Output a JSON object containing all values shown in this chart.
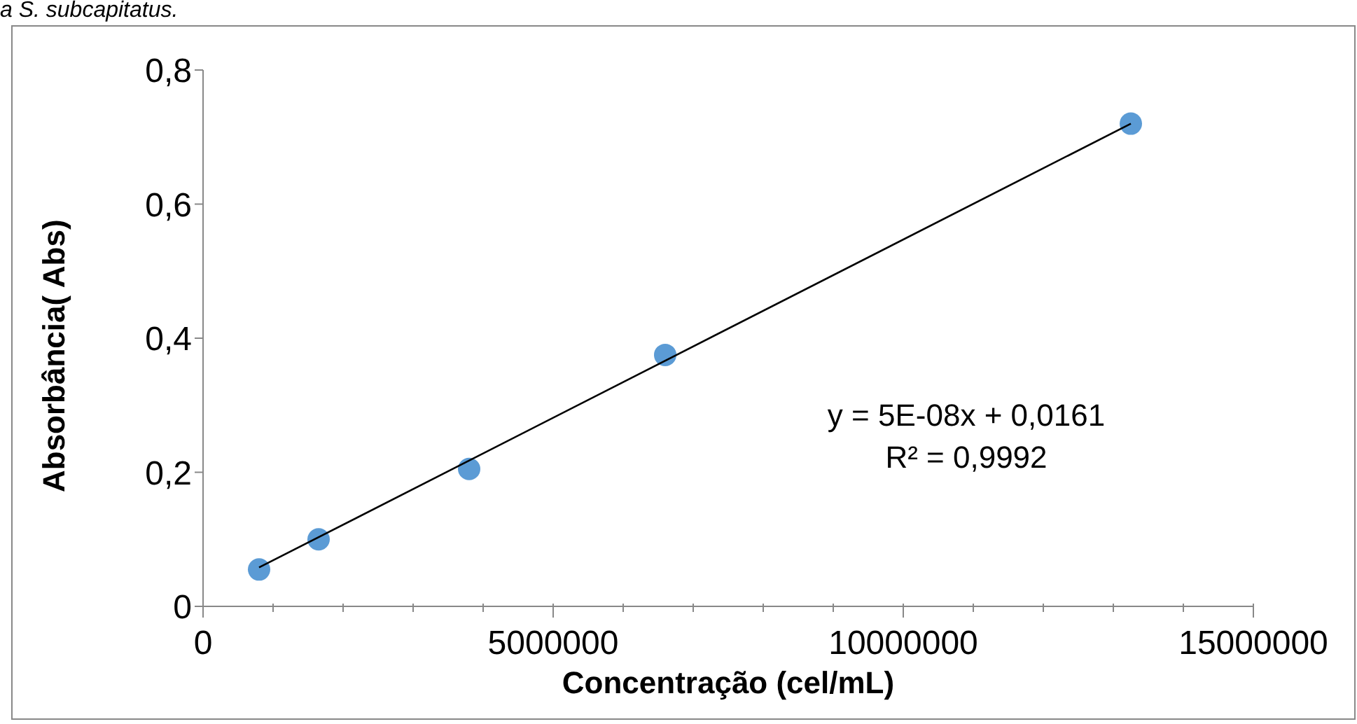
{
  "chart_data": {
    "type": "scatter",
    "xlabel": "Concentração (cel/mL)",
    "ylabel": "Absorbância( Abs)",
    "annotations": [
      "a S. subcapitatus.",
      "y = 5E-08x + 0,0161",
      "R² = 0,9992"
    ],
    "series": [
      {
        "color": "#5b9bd5",
        "marker": "circle",
        "x": [
          800000,
          1650000,
          3800000,
          6600000,
          13250000
        ],
        "values": [
          0.055,
          0.1,
          0.205,
          0.375,
          0.72
        ]
      },
      {
        "type": "line",
        "marker": "none",
        "color": "#000000",
        "x": [
          800000,
          13250000
        ],
        "values": [
          0.058,
          0.72
        ]
      }
    ],
    "xlim": [
      0,
      15000000
    ],
    "xticks": [
      0,
      {
        "value": 1000000,
        "label": null
      },
      {
        "value": 2000000,
        "label": null
      },
      {
        "value": 3000000,
        "label": null
      },
      {
        "value": 4000000,
        "label": null
      },
      5000000,
      {
        "value": 6000000,
        "label": null
      },
      {
        "value": 7000000,
        "label": null
      },
      {
        "value": 8000000,
        "label": null
      },
      {
        "value": 9000000,
        "label": null
      },
      10000000,
      {
        "value": 11000000,
        "label": null
      },
      {
        "value": 12000000,
        "label": null
      },
      {
        "value": 13000000,
        "label": null
      },
      {
        "value": 14000000,
        "label": null
      },
      15000000
    ],
    "ylim": [
      0,
      0.8
    ],
    "yticks": [
      0,
      {
        "value": 0.2,
        "label": "0,2"
      },
      {
        "value": 0.4,
        "label": "0,4"
      },
      {
        "value": 0.6,
        "label": "0,6"
      },
      {
        "value": 0.8,
        "label": "0,8"
      }
    ],
    "grid": false,
    "legend": false
  }
}
